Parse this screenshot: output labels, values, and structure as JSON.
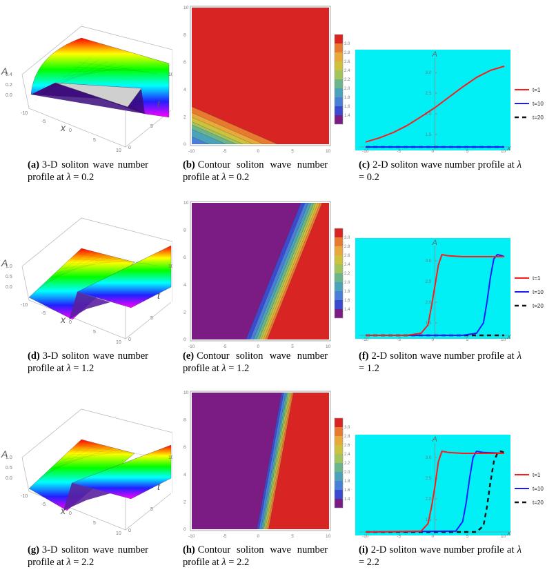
{
  "panels": [
    {
      "id": "a",
      "kind": "3d",
      "caption_label": "(a)",
      "caption_text": "3-D soliton wave number profile at",
      "symbol": "λ",
      "value": "= 0.2",
      "a_ticks": [
        "0.4",
        "0.2",
        "0.0"
      ],
      "x_ticks": [
        "-10",
        "-5",
        "0",
        "5",
        "10"
      ],
      "t_ticks": [
        "0",
        "5",
        "10"
      ],
      "a_label": "A",
      "x_label": "x",
      "t_label": "t"
    },
    {
      "id": "b",
      "kind": "contour",
      "caption_label": "(b)",
      "caption_text": "Contour soliton wave number profile at",
      "symbol": "λ",
      "value": "= 0.2"
    },
    {
      "id": "c",
      "kind": "line",
      "caption_label": "(c)",
      "caption_text": "2-D soliton wave number profile at",
      "symbol": "λ",
      "value": "= 0.2"
    },
    {
      "id": "d",
      "kind": "3d",
      "caption_label": "(d)",
      "caption_text": "3-D soliton wave number profile at",
      "symbol": "λ",
      "value": "= 1.2",
      "a_ticks": [
        "1.0",
        "0.5",
        "0.0"
      ],
      "x_ticks": [
        "-10",
        "-5",
        "0",
        "5",
        "10"
      ],
      "t_ticks": [
        "0",
        "5",
        "10"
      ],
      "a_label": "A",
      "x_label": "x",
      "t_label": "t"
    },
    {
      "id": "e",
      "kind": "contour",
      "caption_label": "(e)",
      "caption_text": "Contour soliton wave number profile at",
      "symbol": "λ",
      "value": "= 1.2"
    },
    {
      "id": "f",
      "kind": "line",
      "caption_label": "(f)",
      "caption_text": "2-D soliton wave number profile at",
      "symbol": "λ",
      "value": "= 1.2"
    },
    {
      "id": "g",
      "kind": "3d",
      "caption_label": "(g)",
      "caption_text": "3-D soliton wave number profile at",
      "symbol": "λ",
      "value": "= 2.2",
      "a_ticks": [
        "1.0",
        "0.5",
        "0.0"
      ],
      "x_ticks": [
        "-10",
        "-5",
        "0",
        "5",
        "10"
      ],
      "t_ticks": [
        "0",
        "5",
        "10"
      ],
      "a_label": "A",
      "x_label": "x",
      "t_label": "t"
    },
    {
      "id": "h",
      "kind": "contour",
      "caption_label": "(h)",
      "caption_text": "Contour soliton wave number profile at",
      "symbol": "λ",
      "value": "= 2.2"
    },
    {
      "id": "i",
      "kind": "line",
      "caption_label": "(i)",
      "caption_text": "2-D soliton wave number profile at",
      "symbol": "λ",
      "value": "= 2.2"
    }
  ],
  "colors": {
    "cyan_bg": "#00f0f5",
    "red": "#ff1a1a",
    "blue": "#1a1aff",
    "black": "#111111"
  },
  "chart_data": [
    {
      "panel": "b",
      "type": "heatmap",
      "xlim": [
        -10,
        10
      ],
      "ylim": [
        0,
        10
      ],
      "x_ticks": [
        "-10",
        "-5",
        "0",
        "5",
        "10"
      ],
      "y_ticks": [
        "0",
        "2",
        "4",
        "6",
        "8",
        "10"
      ],
      "legend_levels": [
        "3.0",
        "2.8",
        "2.6",
        "2.4",
        "2.2",
        "2.0",
        "1.8",
        "1.6",
        "1.4"
      ],
      "boundaries_x_at_t0": [
        -13.6,
        -10,
        -7.5,
        -5,
        -3.5,
        -2.5,
        -1,
        0.5,
        2.5
      ],
      "boundary_dx_per_dt": -4.55
    },
    {
      "panel": "e",
      "type": "heatmap",
      "xlim": [
        -10,
        10
      ],
      "ylim": [
        0,
        10
      ],
      "x_ticks": [
        "-10",
        "-5",
        "0",
        "5",
        "10"
      ],
      "y_ticks": [
        "0",
        "2",
        "4",
        "6",
        "8",
        "10"
      ],
      "legend_levels": [
        "3.0",
        "2.8",
        "2.6",
        "2.4",
        "2.2",
        "2.0",
        "1.8",
        "1.6",
        "1.4"
      ],
      "boundaries_x_at_t0": [
        -2.1,
        -1.5,
        -1.0,
        -0.6,
        -0.2,
        0.1,
        0.4,
        0.7,
        1.0
      ],
      "boundary_dx_per_dt": 0.8
    },
    {
      "panel": "h",
      "type": "heatmap",
      "xlim": [
        -10,
        10
      ],
      "ylim": [
        0,
        10
      ],
      "x_ticks": [
        "-10",
        "-5",
        "0",
        "5",
        "10"
      ],
      "y_ticks": [
        "0",
        "2",
        "4",
        "6",
        "8",
        "10"
      ],
      "legend_levels": [
        "3.0",
        "2.8",
        "2.6",
        "2.4",
        "2.2",
        "2.0",
        "1.8",
        "1.6",
        "1.4"
      ],
      "boundaries_x_at_t0": [
        -0.5,
        -0.2,
        0.1,
        0.3,
        0.5,
        0.7,
        0.85,
        1.0,
        1.2
      ],
      "boundary_dx_per_dt": 0.36
    },
    {
      "panel": "c",
      "type": "line",
      "xlabel": "x",
      "ylabel": "A",
      "xlim": [
        -10,
        10
      ],
      "ylim": [
        1.2,
        3.3
      ],
      "x_ticks": [
        "-10",
        "-5",
        "0",
        "5",
        "10"
      ],
      "y_ticks": [
        "1.5",
        "2.0",
        "2.5",
        "3.0"
      ],
      "legend_placement": "right",
      "series": [
        {
          "name": "t=1",
          "color": "red",
          "dash": false,
          "x": [
            -10,
            -8,
            -6,
            -4,
            -2,
            0,
            2,
            4,
            6,
            8,
            10
          ],
          "y": [
            1.32,
            1.42,
            1.55,
            1.72,
            1.93,
            2.15,
            2.4,
            2.65,
            2.88,
            3.05,
            3.15
          ]
        },
        {
          "name": "t=10",
          "color": "blue",
          "dash": false,
          "x": [
            -10,
            10
          ],
          "y": [
            1.2,
            1.2
          ]
        },
        {
          "name": "t=20",
          "color": "black",
          "dash": true,
          "x": [
            -10,
            10
          ],
          "y": [
            1.2,
            1.2
          ]
        }
      ]
    },
    {
      "panel": "f",
      "type": "line",
      "xlabel": "x",
      "ylabel": "A",
      "xlim": [
        -10,
        10
      ],
      "ylim": [
        1.2,
        3.3
      ],
      "x_ticks": [
        "-10",
        "-5",
        "0",
        "5",
        "10"
      ],
      "y_ticks": [
        "1.5",
        "2.0",
        "2.5",
        "3.0"
      ],
      "legend_placement": "right",
      "series": [
        {
          "name": "t=1",
          "color": "red",
          "dash": false,
          "x": [
            -10,
            -4,
            -2,
            -1,
            -0.5,
            0,
            0.5,
            1,
            2,
            4,
            10
          ],
          "y": [
            1.2,
            1.2,
            1.25,
            1.45,
            1.9,
            2.4,
            2.9,
            3.15,
            3.12,
            3.1,
            3.1
          ]
        },
        {
          "name": "t=10",
          "color": "blue",
          "dash": false,
          "x": [
            -10,
            4,
            6,
            7,
            7.5,
            8,
            8.5,
            9,
            9.5,
            10
          ],
          "y": [
            1.2,
            1.2,
            1.25,
            1.5,
            2.0,
            2.6,
            3.05,
            3.15,
            3.13,
            3.1
          ]
        },
        {
          "name": "t=20",
          "color": "black",
          "dash": true,
          "x": [
            -10,
            10
          ],
          "y": [
            1.2,
            1.2
          ]
        }
      ]
    },
    {
      "panel": "i",
      "type": "line",
      "xlabel": "x",
      "ylabel": "A",
      "xlim": [
        -10,
        10
      ],
      "ylim": [
        1.2,
        3.3
      ],
      "x_ticks": [
        "-10",
        "-5",
        "0",
        "5",
        "10"
      ],
      "y_ticks": [
        "1.5",
        "2.0",
        "2.5",
        "3.0"
      ],
      "legend_placement": "right",
      "series": [
        {
          "name": "t=1",
          "color": "red",
          "dash": false,
          "x": [
            -10,
            -2,
            -1,
            -0.5,
            0,
            0.5,
            1,
            2,
            4,
            10
          ],
          "y": [
            1.2,
            1.22,
            1.4,
            1.8,
            2.3,
            2.9,
            3.15,
            3.12,
            3.1,
            3.1
          ]
        },
        {
          "name": "t=10",
          "color": "blue",
          "dash": false,
          "x": [
            -10,
            3,
            4,
            4.5,
            5,
            5.5,
            6,
            7,
            10
          ],
          "y": [
            1.2,
            1.22,
            1.45,
            1.9,
            2.5,
            3.0,
            3.15,
            3.12,
            3.1
          ]
        },
        {
          "name": "t=20",
          "color": "black",
          "dash": true,
          "x": [
            -10,
            6,
            7,
            7.5,
            8,
            8.5,
            9,
            9.5,
            10
          ],
          "y": [
            1.2,
            1.2,
            1.35,
            1.8,
            2.4,
            2.9,
            3.1,
            3.15,
            3.12
          ]
        }
      ]
    }
  ]
}
